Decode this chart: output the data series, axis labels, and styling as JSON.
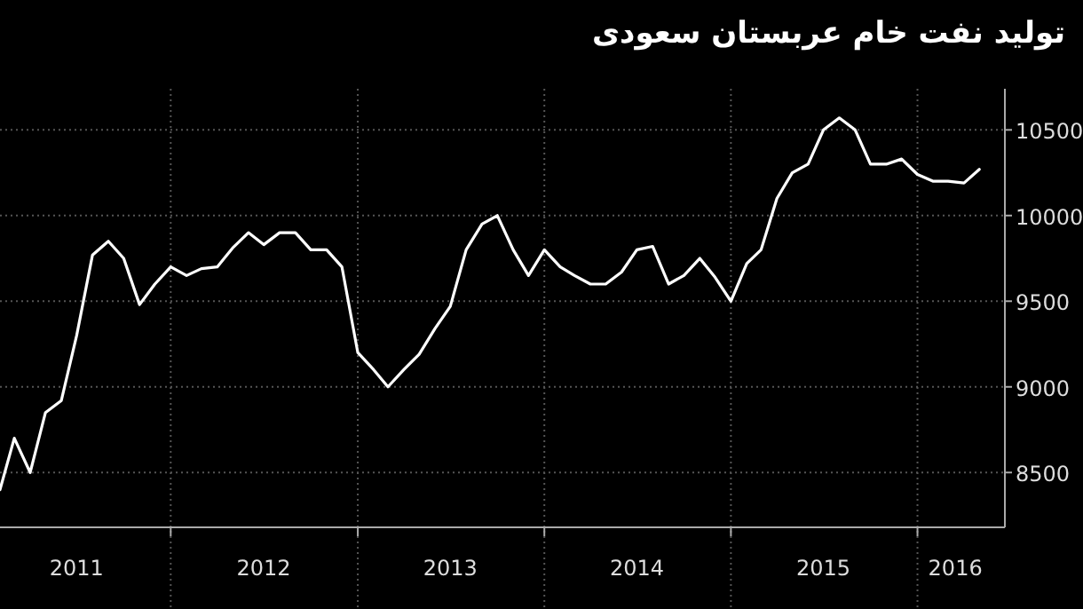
{
  "chart_data": {
    "type": "line",
    "title": "تولید نفت خام عربستان سعودی",
    "x": [
      "2011-02",
      "2011-03",
      "2011-04",
      "2011-05",
      "2011-06",
      "2011-07",
      "2011-08",
      "2011-09",
      "2011-10",
      "2011-11",
      "2011-12",
      "2012-01",
      "2012-02",
      "2012-03",
      "2012-04",
      "2012-05",
      "2012-06",
      "2012-07",
      "2012-08",
      "2012-09",
      "2012-10",
      "2012-11",
      "2012-12",
      "2013-01",
      "2013-02",
      "2013-03",
      "2013-04",
      "2013-05",
      "2013-06",
      "2013-07",
      "2013-08",
      "2013-09",
      "2013-10",
      "2013-11",
      "2013-12",
      "2014-01",
      "2014-02",
      "2014-03",
      "2014-04",
      "2014-05",
      "2014-06",
      "2014-07",
      "2014-08",
      "2014-09",
      "2014-10",
      "2014-11",
      "2014-12",
      "2015-01",
      "2015-02",
      "2015-03",
      "2015-04",
      "2015-05",
      "2015-06",
      "2015-07",
      "2015-08",
      "2015-09",
      "2015-10",
      "2015-11",
      "2015-12",
      "2016-01",
      "2016-02",
      "2016-03",
      "2016-04",
      "2016-05"
    ],
    "series": [
      {
        "color": "#ffffff",
        "values": [
          8400,
          8700,
          8500,
          8850,
          8920,
          9300,
          9770,
          9850,
          9750,
          9480,
          9600,
          9700,
          9650,
          9690,
          9700,
          9810,
          9900,
          9830,
          9900,
          9900,
          9800,
          9800,
          9700,
          9200,
          9100,
          9000,
          9100,
          9190,
          9340,
          9470,
          9800,
          9950,
          10000,
          9800,
          9650,
          9800,
          9700,
          9650,
          9600,
          9600,
          9670,
          9800,
          9820,
          9600,
          9650,
          9750,
          9640,
          9500,
          9720,
          9800,
          10100,
          10250,
          10300,
          10500,
          10570,
          10500,
          10300,
          10300,
          10330,
          10240,
          10200,
          10200,
          10190,
          10270
        ]
      }
    ],
    "xlim": [
      "2011-02",
      "2016-06-20"
    ],
    "xticks": [
      {
        "value": "2011-07",
        "label": "2011"
      },
      {
        "value": "2012-01",
        "label": null
      },
      {
        "value": "2012-07",
        "label": "2012"
      },
      {
        "value": "2013-01",
        "label": null
      },
      {
        "value": "2013-07",
        "label": "2013"
      },
      {
        "value": "2014-01",
        "label": null
      },
      {
        "value": "2014-07",
        "label": "2014"
      },
      {
        "value": "2015-01",
        "label": null
      },
      {
        "value": "2015-07",
        "label": "2015"
      },
      {
        "value": "2016-01",
        "label": null
      },
      {
        "value": "2016-03-15",
        "label": "2016"
      }
    ],
    "ylim": [
      8180,
      10740
    ],
    "yticks": [
      8500,
      9000,
      9500,
      10000,
      10500
    ],
    "grid": true,
    "line_style": "solid",
    "marker": "none"
  }
}
